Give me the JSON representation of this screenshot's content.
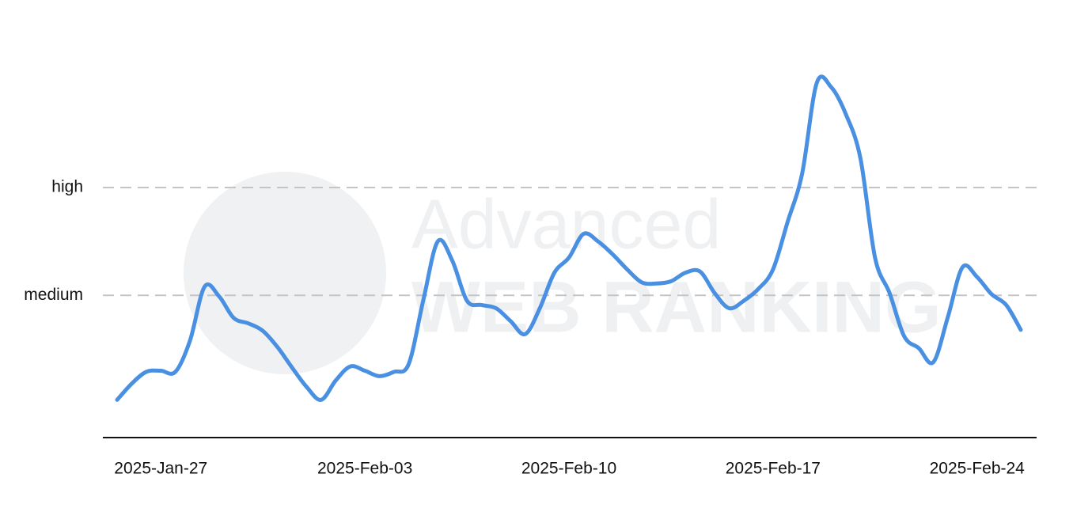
{
  "chart_data": {
    "type": "line",
    "watermark": {
      "line1": "Advanced",
      "line2": "WEB RANKING"
    },
    "categories": [
      null,
      null,
      null,
      "2025-Jan-27",
      null,
      null,
      null,
      null,
      null,
      null,
      null,
      null,
      null,
      null,
      null,
      null,
      null,
      "2025-Feb-03",
      null,
      null,
      null,
      null,
      null,
      null,
      null,
      null,
      null,
      null,
      null,
      null,
      null,
      "2025-Feb-10",
      null,
      null,
      null,
      null,
      null,
      null,
      null,
      null,
      null,
      null,
      null,
      null,
      null,
      "2025-Feb-17",
      null,
      null,
      null,
      null,
      null,
      null,
      null,
      null,
      null,
      null,
      null,
      null,
      null,
      "2025-Feb-24",
      null,
      null,
      null
    ],
    "series": [
      {
        "color": "#4a90e2",
        "values": [
          0.03,
          0.18,
          0.29,
          0.3,
          0.29,
          0.58,
          1.08,
          0.99,
          0.79,
          0.74,
          0.67,
          0.52,
          0.33,
          0.15,
          0.03,
          0.21,
          0.34,
          0.3,
          0.25,
          0.29,
          0.36,
          0.95,
          1.5,
          1.32,
          0.95,
          0.91,
          0.88,
          0.76,
          0.64,
          0.88,
          1.21,
          1.35,
          1.57,
          1.5,
          1.38,
          1.24,
          1.12,
          1.11,
          1.13,
          1.21,
          1.22,
          1.02,
          0.88,
          0.95,
          1.06,
          1.24,
          1.68,
          2.13,
          2.97,
          2.93,
          2.68,
          2.27,
          1.35,
          1.02,
          0.62,
          0.51,
          0.38,
          0.8,
          1.26,
          1.17,
          1.01,
          0.91,
          0.68
        ]
      }
    ],
    "ylim": [
      -0.32,
      3.05
    ],
    "yticks": [
      {
        "value": 1,
        "label": "medium"
      },
      {
        "value": 2,
        "label": "high"
      }
    ],
    "grid": true
  }
}
